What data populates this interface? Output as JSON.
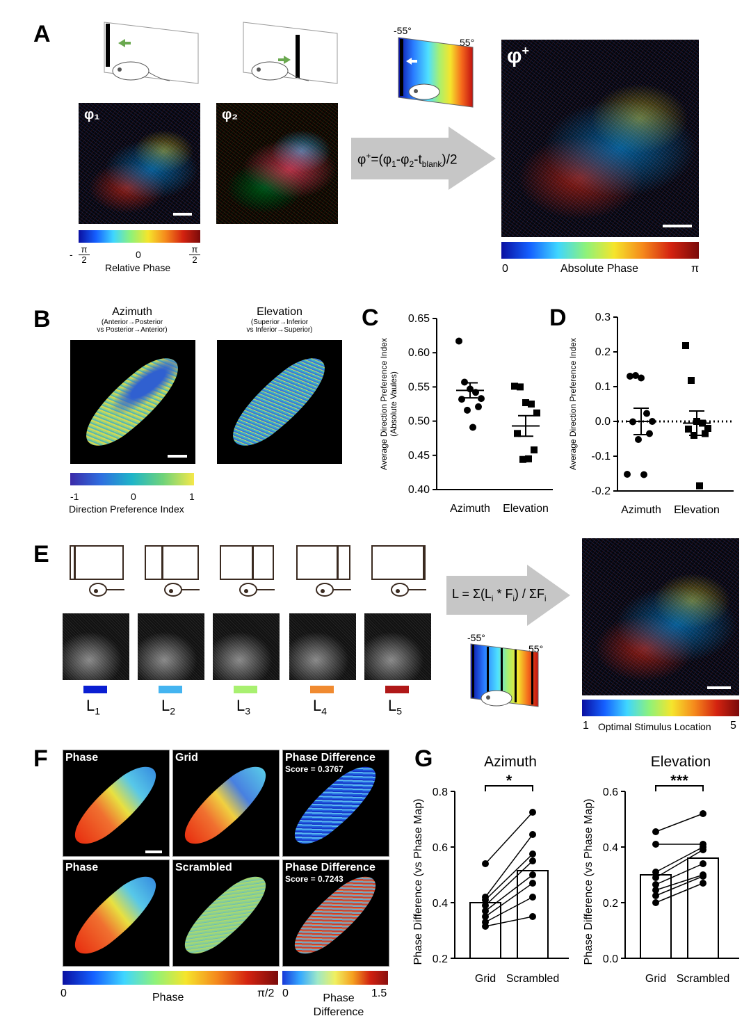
{
  "panels": {
    "A": "A",
    "B": "B",
    "C": "C",
    "D": "D",
    "E": "E",
    "F": "F",
    "G": "G"
  },
  "panelA": {
    "phi1": "φ₁",
    "phi2": "φ₂",
    "phiplus": "φ⁺",
    "formula": "φ⁺=(φ₁-φ₂-t_blank)/2",
    "deg_left": "-55°",
    "deg_right": "55°",
    "rel_phase": {
      "min_sign": "-",
      "min_num": "π",
      "min_den": "2",
      "mid": "0",
      "max_num": "π",
      "max_den": "2",
      "label": "Relative Phase"
    },
    "abs_phase": {
      "min": "0",
      "label": "Absolute Phase",
      "max": "π"
    }
  },
  "panelB": {
    "azimuth_title": "Azimuth",
    "azimuth_sub1": "(Anterior→Posterior",
    "azimuth_sub2": "vs Posterior→Anterior)",
    "elevation_title": "Elevation",
    "elevation_sub1": "(Superior→Inferior",
    "elevation_sub2": "vs Inferior→Superior)",
    "cbar_min": "-1",
    "cbar_mid": "0",
    "cbar_max": "1",
    "cbar_label": "Direction Preference Index"
  },
  "panelE": {
    "formula": "L = Σ(Lᵢ * Fᵢ) / ΣFᵢ",
    "deg_left": "-55°",
    "deg_right": "55°",
    "labels": [
      {
        "L": "L",
        "sub": "1",
        "color": "#0a1ed2"
      },
      {
        "L": "L",
        "sub": "2",
        "color": "#44b4f0"
      },
      {
        "L": "L",
        "sub": "3",
        "color": "#a8f070"
      },
      {
        "L": "L",
        "sub": "4",
        "color": "#f08a30"
      },
      {
        "L": "L",
        "sub": "5",
        "color": "#b01818"
      }
    ],
    "cbar_min": "1",
    "cbar_label": "Optimal Stimulus Location",
    "cbar_max": "5"
  },
  "panelF": {
    "row1": [
      "Phase",
      "Grid",
      "Phase Difference"
    ],
    "row2": [
      "Phase",
      "Scrambled",
      "Phase Difference"
    ],
    "score1": "Score = 0.3767",
    "score2": "Score = 0.7243",
    "phase_min": "0",
    "phase_label": "Phase",
    "phase_max": "π/2",
    "diff_min": "0",
    "diff_label1": "Phase",
    "diff_label2": "Difference",
    "diff_max": "1.5"
  },
  "chart_data": [
    {
      "id": "C",
      "type": "scatter",
      "ylabel": "Average Direction Preference Index\n(Absolute Vaules)",
      "ylabel1": "Average Direction Preference Index",
      "ylabel2": "(Absolute Vaules)",
      "ylim": [
        0.4,
        0.65
      ],
      "yticks": [
        "0.40",
        "0.45",
        "0.50",
        "0.55",
        "0.60",
        "0.65"
      ],
      "categories": [
        "Azimuth",
        "Elevation"
      ],
      "series": [
        {
          "values": [
            0.617,
            0.557,
            0.547,
            0.542,
            0.533,
            0.532,
            0.521,
            0.516,
            0.491
          ],
          "mean": 0.545,
          "sem": 0.011,
          "marker": "circle"
        },
        {
          "values": [
            0.551,
            0.55,
            0.527,
            0.525,
            0.512,
            0.482,
            0.458,
            0.444,
            0.445
          ],
          "mean": 0.493,
          "sem": 0.015,
          "marker": "square"
        }
      ]
    },
    {
      "id": "D",
      "type": "scatter",
      "ylabel": "Average Direction Preference Index",
      "ylim": [
        -0.2,
        0.3
      ],
      "yticks": [
        "-0.2",
        "-0.1",
        "0.0",
        "0.1",
        "0.2",
        "0.3"
      ],
      "categories": [
        "Azimuth",
        "Elevation"
      ],
      "refline": 0.0,
      "series": [
        {
          "values": [
            0.13,
            0.132,
            0.125,
            0.023,
            0.0,
            -0.001,
            -0.035,
            -0.052,
            -0.153,
            -0.152
          ],
          "mean": 0.0,
          "sem": 0.038,
          "marker": "circle"
        },
        {
          "values": [
            0.218,
            0.118,
            0.0,
            -0.005,
            -0.02,
            -0.022,
            -0.035,
            -0.04,
            -0.185
          ],
          "mean": -0.005,
          "sem": 0.035,
          "marker": "square"
        }
      ]
    },
    {
      "id": "G-azimuth",
      "type": "bar",
      "title": "Azimuth",
      "significance": "*",
      "ylabel": "Phase Difference (vs Phase Map)",
      "ylim": [
        0.2,
        0.8
      ],
      "yticks": [
        "0.2",
        "0.4",
        "0.6",
        "0.8"
      ],
      "categories": [
        "Grid",
        "Scrambled"
      ],
      "bar_values": [
        0.4,
        0.515
      ],
      "paired": [
        [
          0.54,
          0.725
        ],
        [
          0.42,
          0.645
        ],
        [
          0.41,
          0.575
        ],
        [
          0.39,
          0.55
        ],
        [
          0.37,
          0.5
        ],
        [
          0.35,
          0.47
        ],
        [
          0.33,
          0.42
        ],
        [
          0.315,
          0.35
        ]
      ]
    },
    {
      "id": "G-elevation",
      "type": "bar",
      "title": "Elevation",
      "significance": "***",
      "ylabel": "Phase Difference (vs Phase Map)",
      "ylim": [
        0.0,
        0.6
      ],
      "yticks": [
        "0.0",
        "0.2",
        "0.4",
        "0.6"
      ],
      "categories": [
        "Grid",
        "Scrambled"
      ],
      "bar_values": [
        0.3,
        0.36
      ],
      "paired": [
        [
          0.455,
          0.52
        ],
        [
          0.41,
          0.41
        ],
        [
          0.31,
          0.4
        ],
        [
          0.29,
          0.39
        ],
        [
          0.265,
          0.34
        ],
        [
          0.245,
          0.3
        ],
        [
          0.225,
          0.295
        ],
        [
          0.2,
          0.27
        ]
      ]
    }
  ]
}
